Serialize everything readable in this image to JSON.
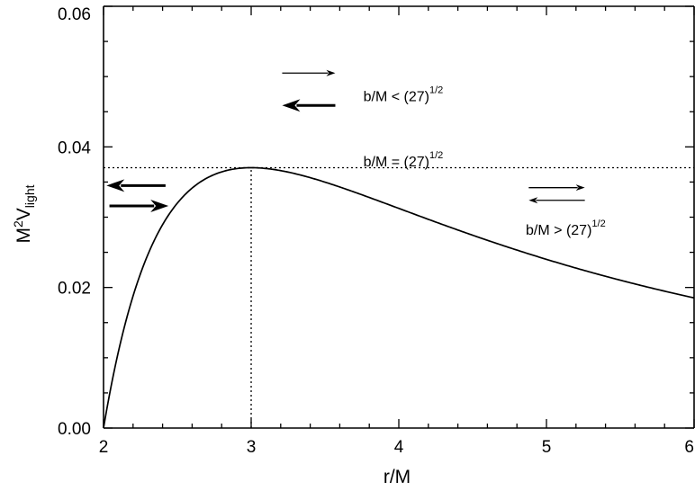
{
  "chart_data": {
    "type": "line",
    "title": "",
    "xlabel": "r/M",
    "ylabel": {
      "base": "M",
      "exp": "2",
      "main": "V",
      "sub": "light"
    },
    "xlim": [
      2,
      6
    ],
    "ylim": [
      0,
      0.06
    ],
    "xticks": [
      2,
      3,
      4,
      5,
      6
    ],
    "xtick_labels": [
      "2",
      "3",
      "4",
      "5",
      "6"
    ],
    "yticks": [
      0,
      0.02,
      0.04,
      0.06
    ],
    "ytick_labels": [
      "0.00",
      "0.02",
      "0.04",
      "0.06"
    ],
    "grid": false,
    "series": [
      {
        "formula": "(1 - 2/x) / x^2",
        "x_range": [
          2,
          6
        ]
      }
    ],
    "reference_lines": [
      {
        "orientation": "horizontal",
        "y": 0.037037,
        "style": "dotted"
      },
      {
        "orientation": "vertical",
        "x": 3,
        "y_range": [
          0,
          0.037037
        ],
        "style": "dotted"
      }
    ],
    "annotations": [
      {
        "text": "b/M < (27)",
        "sup": "1/2",
        "x": 3.76,
        "y": 0.0465
      },
      {
        "text": "b/M = (27)",
        "sup": "1/2",
        "x": 3.76,
        "y": 0.0372
      },
      {
        "text": "b/M > (27)",
        "sup": "1/2",
        "x": 4.86,
        "y": 0.0275
      }
    ],
    "arrows": [
      {
        "from": [
          3.21,
          0.0505
        ],
        "to": [
          3.57,
          0.0505
        ],
        "weight": "thin"
      },
      {
        "from": [
          3.57,
          0.0459
        ],
        "to": [
          3.21,
          0.0459
        ],
        "weight": "thick"
      },
      {
        "from": [
          2.42,
          0.0345
        ],
        "to": [
          2.02,
          0.0345
        ],
        "weight": "thick"
      },
      {
        "from": [
          2.04,
          0.0316
        ],
        "to": [
          2.44,
          0.0316
        ],
        "weight": "thick"
      },
      {
        "from": [
          4.88,
          0.0342
        ],
        "to": [
          5.26,
          0.0342
        ],
        "weight": "thin"
      },
      {
        "from": [
          5.26,
          0.0324
        ],
        "to": [
          4.88,
          0.0324
        ],
        "weight": "thin"
      }
    ]
  }
}
